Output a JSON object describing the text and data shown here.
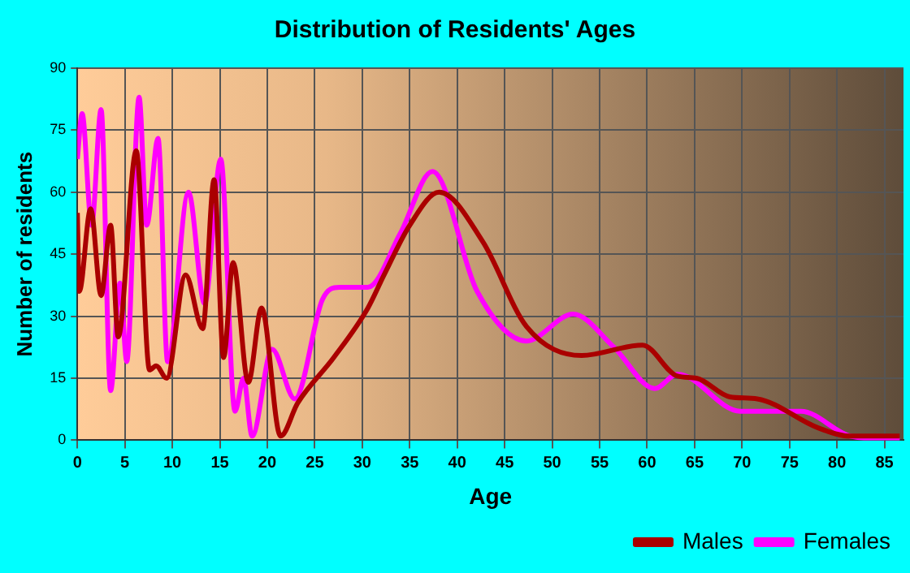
{
  "chart_data": {
    "type": "line",
    "title": "Distribution of Residents' Ages",
    "xlabel": "Age",
    "ylabel": "Number of residents",
    "xlim": [
      0,
      87
    ],
    "xticks": [
      0,
      5,
      10,
      15,
      20,
      25,
      30,
      35,
      40,
      45,
      50,
      55,
      60,
      65,
      70,
      75,
      80,
      85
    ],
    "ylim": [
      0,
      90
    ],
    "yticks": [
      0,
      15,
      30,
      45,
      60,
      75,
      90
    ],
    "grid": true,
    "legend": "bottom right",
    "marker": "none",
    "line_style": "solid",
    "series": [
      {
        "name": "Males",
        "color": "#aa0000",
        "x": [
          0,
          0.2,
          1.4,
          2.5,
          3.5,
          4.3,
          6.2,
          7.6,
          8.3,
          9.4,
          11.4,
          13.2,
          14.4,
          15.4,
          16.4,
          18,
          19.4,
          21.4,
          23.2,
          27,
          30.6,
          32.3,
          35,
          38.1,
          42.7,
          47.3,
          53.1,
          59.5,
          63.2,
          65.2,
          68.7,
          71.6,
          78,
          81.4,
          86.6
        ],
        "values": [
          55,
          36,
          56,
          35,
          52,
          25,
          70,
          17,
          18,
          15,
          40,
          27,
          63,
          20,
          43,
          14,
          32,
          1,
          9,
          20,
          32,
          40,
          52,
          60,
          48,
          27.5,
          20.5,
          23,
          15.5,
          15,
          10.5,
          10,
          3,
          1,
          1
        ]
      },
      {
        "name": "Females",
        "color": "#ff00ff",
        "x": [
          0,
          0.5,
          1.5,
          2.5,
          3.5,
          4.5,
          5.2,
          6.5,
          7.3,
          8.5,
          9.5,
          11.7,
          13.4,
          15.1,
          16.6,
          17.5,
          18.4,
          20.5,
          22.9,
          25.8,
          27.6,
          30.6,
          34,
          37.4,
          42.1,
          47.3,
          52.2,
          56.5,
          60.8,
          63.2,
          69.8,
          76.2,
          81.4,
          86.6
        ],
        "values": [
          68,
          79,
          52,
          80,
          12,
          38,
          19,
          83,
          52,
          73,
          19,
          60,
          33,
          68,
          7,
          15,
          1,
          22,
          10,
          34,
          37,
          37,
          50,
          65,
          36,
          24,
          30.5,
          22.5,
          12.5,
          16,
          7,
          7,
          1,
          0
        ]
      }
    ]
  }
}
